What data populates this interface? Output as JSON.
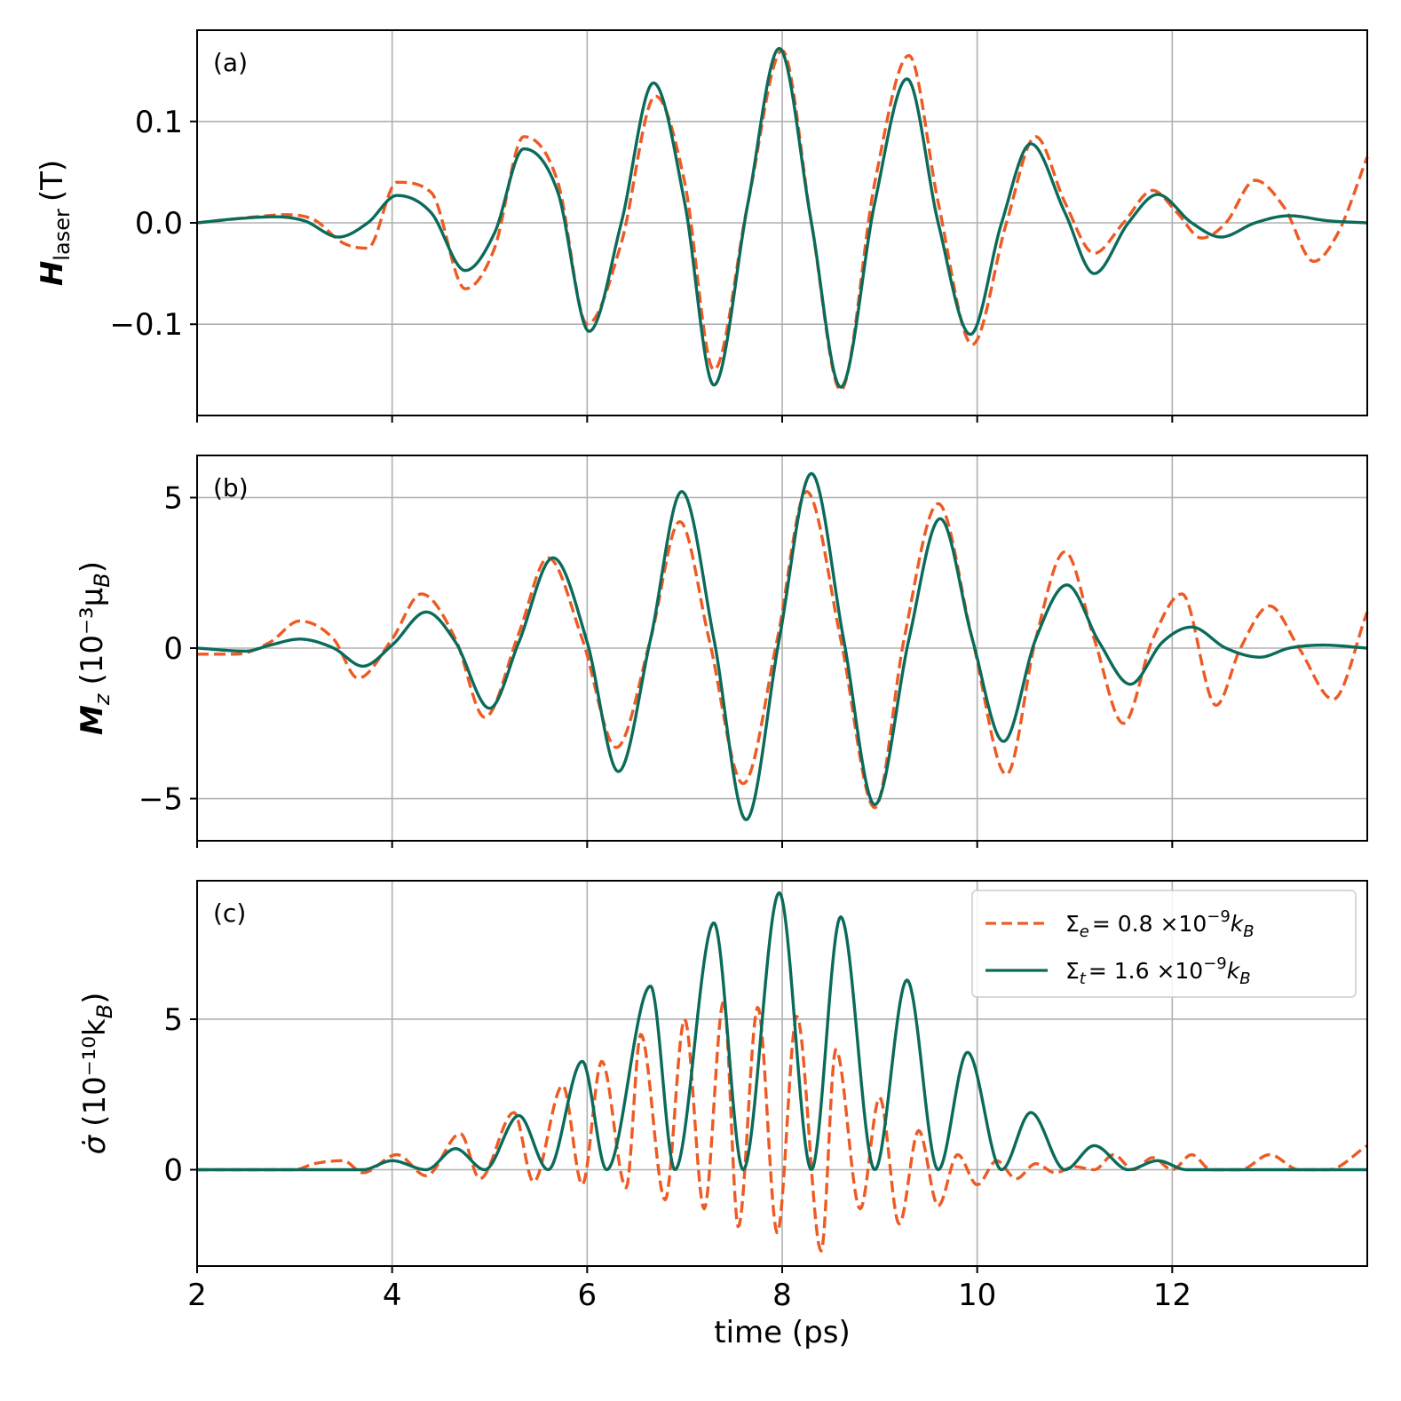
{
  "chart_data": [
    {
      "type": "line",
      "panel_label": "(a)",
      "ylabel": {
        "symbol": "H",
        "subscript": "laser",
        "unit": "(T)"
      },
      "xlabel": "",
      "xlim": [
        2,
        14
      ],
      "ylim": [
        -0.19,
        0.19
      ],
      "xticks": [
        2,
        4,
        6,
        8,
        10,
        12
      ],
      "yticks": [
        -0.1,
        0.0,
        0.1
      ],
      "ytick_labels": [
        "−0.1",
        "0.0",
        "0.1"
      ],
      "grid": true,
      "series": [
        {
          "name": "Σe = 0.8 ×10⁻⁹ kB",
          "style": "dashed",
          "color": "#ee5a24",
          "x": [
            2,
            2.3,
            2.6,
            2.9,
            3.2,
            3.5,
            3.75,
            4.05,
            4.4,
            4.75,
            5.05,
            5.35,
            5.7,
            6,
            6.35,
            6.7,
            7,
            7.3,
            7.65,
            8,
            8.3,
            8.6,
            8.95,
            9.3,
            9.6,
            9.95,
            10.3,
            10.6,
            10.9,
            11.2,
            11.5,
            11.8,
            12.05,
            12.3,
            12.55,
            12.85,
            13.15,
            13.45,
            13.7,
            14
          ],
          "y": [
            0,
            0.003,
            0.006,
            0.008,
            0.003,
            -0.02,
            -0.025,
            0.04,
            0.03,
            -0.065,
            -0.025,
            0.085,
            0.04,
            -0.1,
            -0.02,
            0.125,
            0.04,
            -0.145,
            0.02,
            0.17,
            0.0,
            -0.165,
            0.04,
            0.165,
            0.02,
            -0.12,
            0.0,
            0.085,
            0.02,
            -0.03,
            0.0,
            0.032,
            0.01,
            -0.015,
            0.0,
            0.042,
            0.015,
            -0.038,
            -0.01,
            0.065
          ]
        },
        {
          "name": "Σt = 1.6 ×10⁻⁹ kB",
          "style": "solid",
          "color": "#0b6b5a",
          "x": [
            2,
            2.4,
            2.8,
            3.1,
            3.45,
            3.75,
            4.05,
            4.4,
            4.75,
            5.05,
            5.35,
            5.7,
            6.02,
            6.35,
            6.68,
            7.0,
            7.3,
            7.65,
            7.97,
            8.3,
            8.6,
            8.95,
            9.28,
            9.6,
            9.93,
            10.25,
            10.55,
            10.9,
            11.2,
            11.55,
            11.85,
            12.2,
            12.5,
            12.85,
            13.2,
            13.6,
            14
          ],
          "y": [
            0,
            0.004,
            0.006,
            0.002,
            -0.014,
            0.0,
            0.027,
            0.01,
            -0.047,
            -0.01,
            0.073,
            0.03,
            -0.107,
            0.0,
            0.138,
            0.02,
            -0.16,
            0.02,
            0.172,
            0.0,
            -0.162,
            0.02,
            0.142,
            0.0,
            -0.11,
            0.0,
            0.078,
            0.01,
            -0.05,
            0.0,
            0.028,
            0.0,
            -0.014,
            0.0,
            0.007,
            0.002,
            0.0
          ]
        }
      ]
    },
    {
      "type": "line",
      "panel_label": "(b)",
      "ylabel": {
        "symbol": "M",
        "subscript": "z",
        "unit": "(10⁻³μ",
        "unit_subscript": "B",
        "unit_close": ")"
      },
      "xlabel": "",
      "xlim": [
        2,
        14
      ],
      "ylim": [
        -6.4,
        6.4
      ],
      "xticks": [
        2,
        4,
        6,
        8,
        10,
        12
      ],
      "yticks": [
        -5,
        0,
        5
      ],
      "ytick_labels": [
        "−5",
        "0",
        "5"
      ],
      "grid": true,
      "series": [
        {
          "name": "Σe = 0.8 ×10⁻⁹ kB",
          "style": "dashed",
          "color": "#ee5a24",
          "x": [
            2,
            2.4,
            2.75,
            3.05,
            3.4,
            3.65,
            4.0,
            4.3,
            4.65,
            4.95,
            5.3,
            5.6,
            5.95,
            6.3,
            6.65,
            6.95,
            7.25,
            7.6,
            7.95,
            8.25,
            8.6,
            8.95,
            9.25,
            9.6,
            9.95,
            10.3,
            10.6,
            10.9,
            11.2,
            11.5,
            11.8,
            12.1,
            12.45,
            12.7,
            13.0,
            13.3,
            13.65,
            14
          ],
          "y": [
            -0.2,
            -0.2,
            0.2,
            0.9,
            0.3,
            -1.0,
            0.3,
            1.8,
            0.3,
            -2.3,
            0.5,
            3.0,
            0.3,
            -3.3,
            0.3,
            4.2,
            0.3,
            -4.5,
            0.3,
            5.2,
            0.3,
            -5.3,
            0.3,
            4.8,
            0.3,
            -4.2,
            0.3,
            3.2,
            0.3,
            -2.5,
            0.3,
            1.8,
            -1.9,
            0.0,
            1.4,
            0.0,
            -1.7,
            1.2
          ]
        },
        {
          "name": "Σt = 1.6 ×10⁻⁹ kB",
          "style": "solid",
          "color": "#0b6b5a",
          "x": [
            2,
            2.5,
            2.75,
            3.05,
            3.4,
            3.7,
            4.0,
            4.35,
            4.65,
            5.0,
            5.3,
            5.65,
            6.0,
            6.32,
            6.65,
            6.97,
            7.3,
            7.63,
            7.97,
            8.3,
            8.63,
            8.95,
            9.3,
            9.62,
            9.95,
            10.27,
            10.6,
            10.92,
            11.25,
            11.57,
            11.9,
            12.2,
            12.55,
            12.9,
            13.2,
            13.55,
            14
          ],
          "y": [
            0,
            -0.1,
            0.1,
            0.3,
            0.0,
            -0.6,
            0.1,
            1.2,
            0.2,
            -2.0,
            0.2,
            3.0,
            0.2,
            -4.1,
            0.3,
            5.2,
            0.3,
            -5.7,
            0.3,
            5.8,
            0.3,
            -5.2,
            0.3,
            4.3,
            0.3,
            -3.1,
            0.3,
            2.1,
            0.2,
            -1.2,
            0.2,
            0.7,
            0.0,
            -0.3,
            0.0,
            0.1,
            0.0
          ]
        }
      ]
    },
    {
      "type": "line",
      "panel_label": "(c)",
      "ylabel": {
        "symbol": "σ̇",
        "subscript": "",
        "unit": "(10⁻¹⁰k",
        "unit_subscript": "B",
        "unit_close": ")"
      },
      "xlabel": "time (ps)",
      "xlim": [
        2,
        14
      ],
      "ylim": [
        -3.2,
        9.6
      ],
      "xticks": [
        2,
        4,
        6,
        8,
        10,
        12
      ],
      "xtick_labels": [
        "2",
        "4",
        "6",
        "8",
        "10",
        "12"
      ],
      "yticks": [
        0,
        5
      ],
      "ytick_labels": [
        "0",
        "5"
      ],
      "grid": true,
      "legend": {
        "position": "upper right",
        "entries": [
          {
            "prefix": "Σ",
            "sub": "e",
            "eq": "= 0.8 ×10",
            "sup": "−9",
            "tail": "k",
            "tail_sub": "B"
          },
          {
            "prefix": "Σ",
            "sub": "t",
            "eq": "= 1.6 ×10",
            "sup": "−9",
            "tail": "k",
            "tail_sub": "B"
          }
        ]
      },
      "series": [
        {
          "name": "Σe = 0.8 ×10⁻⁹ kB",
          "style": "dashed",
          "color": "#ee5a24",
          "x": [
            2,
            3.0,
            3.2,
            3.5,
            3.7,
            4.05,
            4.35,
            4.7,
            4.9,
            5.25,
            5.45,
            5.75,
            5.95,
            6.15,
            6.4,
            6.55,
            6.8,
            7.0,
            7.2,
            7.4,
            7.55,
            7.75,
            7.95,
            8.15,
            8.4,
            8.55,
            8.8,
            9.0,
            9.2,
            9.4,
            9.6,
            9.8,
            10.0,
            10.2,
            10.4,
            10.6,
            10.8,
            11.0,
            11.2,
            11.4,
            11.6,
            11.8,
            12.0,
            12.2,
            12.4,
            12.7,
            13.0,
            13.3,
            13.6,
            14
          ],
          "y": [
            0,
            0.0,
            0.2,
            0.3,
            -0.1,
            0.5,
            -0.2,
            1.2,
            -0.3,
            1.9,
            -0.4,
            2.8,
            -0.5,
            3.6,
            -0.6,
            4.5,
            -1.0,
            5.0,
            -1.3,
            5.6,
            -1.9,
            5.4,
            -2.1,
            5.1,
            -2.7,
            4.0,
            -1.3,
            2.4,
            -1.8,
            1.3,
            -1.2,
            0.5,
            -0.5,
            0.3,
            -0.3,
            0.2,
            -0.1,
            0.1,
            0.0,
            0.5,
            0.0,
            0.4,
            0.0,
            0.5,
            0.0,
            0.0,
            0.5,
            0.0,
            0.0,
            0.8
          ]
        },
        {
          "name": "Σt = 1.6 ×10⁻⁹ kB",
          "style": "solid",
          "color": "#0b6b5a",
          "x": [
            2,
            3.0,
            3.7,
            4.0,
            4.35,
            4.65,
            4.95,
            5.3,
            5.6,
            5.95,
            6.2,
            6.65,
            6.9,
            7.3,
            7.6,
            7.97,
            8.3,
            8.6,
            8.95,
            9.28,
            9.6,
            9.9,
            10.25,
            10.55,
            10.9,
            11.2,
            11.55,
            11.85,
            12.15,
            12.5,
            13.0,
            14
          ],
          "y": [
            0,
            0.0,
            0.0,
            0.3,
            0.0,
            0.7,
            0.0,
            1.8,
            0.0,
            3.6,
            0.0,
            6.1,
            0.0,
            8.2,
            0.0,
            9.2,
            0.0,
            8.4,
            0.0,
            6.3,
            0.0,
            3.9,
            0.0,
            1.9,
            0.0,
            0.8,
            0.0,
            0.3,
            0.0,
            0.0,
            0.0,
            0.0
          ]
        }
      ]
    }
  ]
}
